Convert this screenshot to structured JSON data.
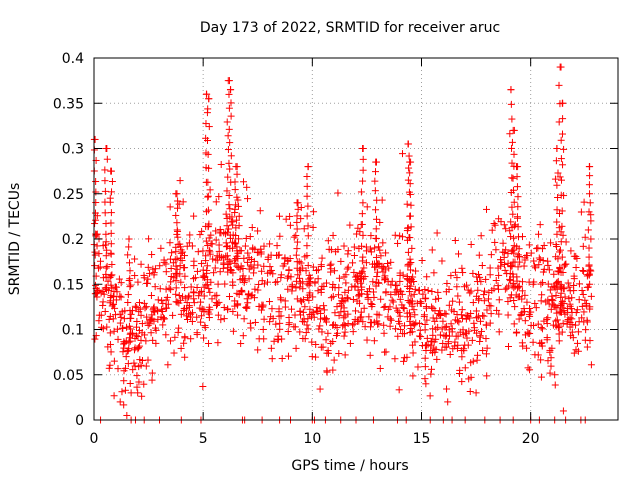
{
  "chart_data": {
    "type": "scatter",
    "title": "Day 173 of 2022, SRMTID for receiver aruc",
    "xlabel": "GPS time / hours",
    "ylabel": "SRMTID / TECUs",
    "xlim": [
      0,
      24
    ],
    "ylim": [
      0,
      0.4
    ],
    "x_ticks": [
      0,
      5,
      10,
      15,
      20
    ],
    "x_tick_labels": [
      "0",
      "5",
      "10",
      "15",
      "20"
    ],
    "y_ticks": [
      0,
      0.05,
      0.1,
      0.15,
      0.2,
      0.25,
      0.3,
      0.35,
      0.4
    ],
    "y_tick_labels": [
      "0",
      "0.05",
      "0.1",
      "0.15",
      "0.2",
      "0.25",
      "0.3",
      "0.35",
      "0.4"
    ],
    "grid": true,
    "marker": "+",
    "series_color": "#ff0000",
    "note": "Dense scatter of roughly 2000 points between 0 and ~22.8 h; values mostly 0.05-0.2 TECU with peaks near 5.2 h (0.36), 6.2 h (0.375), 19.2 h (0.365) and 21.3 h (0.39); a row of points at 0 throughout.",
    "series": [
      {
        "name": "SRMTID",
        "profile": [
          {
            "x": 0.0,
            "y": 0.16
          },
          {
            "x": 0.5,
            "y": 0.15
          },
          {
            "x": 1.0,
            "y": 0.11
          },
          {
            "x": 1.5,
            "y": 0.085
          },
          {
            "x": 2.0,
            "y": 0.09
          },
          {
            "x": 2.5,
            "y": 0.11
          },
          {
            "x": 3.0,
            "y": 0.13
          },
          {
            "x": 3.5,
            "y": 0.14
          },
          {
            "x": 4.0,
            "y": 0.15
          },
          {
            "x": 4.5,
            "y": 0.13
          },
          {
            "x": 5.0,
            "y": 0.14
          },
          {
            "x": 5.5,
            "y": 0.17
          },
          {
            "x": 6.0,
            "y": 0.18
          },
          {
            "x": 6.5,
            "y": 0.17
          },
          {
            "x": 7.0,
            "y": 0.15
          },
          {
            "x": 7.5,
            "y": 0.15
          },
          {
            "x": 8.0,
            "y": 0.14
          },
          {
            "x": 8.5,
            "y": 0.14
          },
          {
            "x": 9.0,
            "y": 0.14
          },
          {
            "x": 9.5,
            "y": 0.15
          },
          {
            "x": 10.0,
            "y": 0.13
          },
          {
            "x": 10.5,
            "y": 0.12
          },
          {
            "x": 11.0,
            "y": 0.13
          },
          {
            "x": 11.5,
            "y": 0.13
          },
          {
            "x": 12.0,
            "y": 0.15
          },
          {
            "x": 12.5,
            "y": 0.14
          },
          {
            "x": 13.0,
            "y": 0.15
          },
          {
            "x": 13.5,
            "y": 0.14
          },
          {
            "x": 14.0,
            "y": 0.14
          },
          {
            "x": 14.5,
            "y": 0.13
          },
          {
            "x": 15.0,
            "y": 0.11
          },
          {
            "x": 15.5,
            "y": 0.1
          },
          {
            "x": 16.0,
            "y": 0.1
          },
          {
            "x": 16.5,
            "y": 0.11
          },
          {
            "x": 17.0,
            "y": 0.1
          },
          {
            "x": 17.5,
            "y": 0.11
          },
          {
            "x": 18.0,
            "y": 0.14
          },
          {
            "x": 18.5,
            "y": 0.16
          },
          {
            "x": 19.0,
            "y": 0.16
          },
          {
            "x": 19.5,
            "y": 0.13
          },
          {
            "x": 20.0,
            "y": 0.12
          },
          {
            "x": 20.5,
            "y": 0.13
          },
          {
            "x": 21.0,
            "y": 0.12
          },
          {
            "x": 21.5,
            "y": 0.13
          },
          {
            "x": 22.0,
            "y": 0.13
          },
          {
            "x": 22.5,
            "y": 0.15
          },
          {
            "x": 22.8,
            "y": 0.15
          }
        ],
        "peaks": [
          {
            "x": 0.05,
            "y": 0.31
          },
          {
            "x": 0.55,
            "y": 0.3
          },
          {
            "x": 0.8,
            "y": 0.275
          },
          {
            "x": 1.6,
            "y": 0.2
          },
          {
            "x": 3.8,
            "y": 0.25
          },
          {
            "x": 5.15,
            "y": 0.36
          },
          {
            "x": 5.25,
            "y": 0.355
          },
          {
            "x": 6.15,
            "y": 0.375
          },
          {
            "x": 6.25,
            "y": 0.365
          },
          {
            "x": 6.5,
            "y": 0.28
          },
          {
            "x": 9.3,
            "y": 0.24
          },
          {
            "x": 9.8,
            "y": 0.28
          },
          {
            "x": 12.3,
            "y": 0.3
          },
          {
            "x": 12.9,
            "y": 0.285
          },
          {
            "x": 14.4,
            "y": 0.305
          },
          {
            "x": 14.5,
            "y": 0.285
          },
          {
            "x": 19.1,
            "y": 0.365
          },
          {
            "x": 19.2,
            "y": 0.32
          },
          {
            "x": 19.4,
            "y": 0.28
          },
          {
            "x": 21.35,
            "y": 0.39
          },
          {
            "x": 21.45,
            "y": 0.35
          },
          {
            "x": 21.2,
            "y": 0.3
          },
          {
            "x": 22.7,
            "y": 0.28
          }
        ],
        "low_points": [
          {
            "x": 1.2,
            "y": 0.02
          },
          {
            "x": 1.7,
            "y": 0.03
          },
          {
            "x": 2.0,
            "y": 0.03
          },
          {
            "x": 15.2,
            "y": 0.04
          },
          {
            "x": 16.2,
            "y": 0.02
          },
          {
            "x": 17.5,
            "y": 0.03
          },
          {
            "x": 21.5,
            "y": 0.01
          },
          {
            "x": 21.1,
            "y": 0.05
          }
        ],
        "zero_points_x": [
          0.3,
          1.7,
          1.9,
          2.3,
          3.0,
          4.0,
          4.9,
          6.8,
          6.9,
          7.7,
          8.5,
          9.0,
          10.0,
          10.1,
          10.6,
          11.3,
          12.0,
          12.8,
          13.9,
          14.3,
          15.4,
          16.0,
          16.4,
          17.0,
          17.9,
          18.6,
          19.2,
          20.0,
          20.4,
          21.1,
          21.6,
          22.3,
          22.5
        ]
      }
    ]
  }
}
